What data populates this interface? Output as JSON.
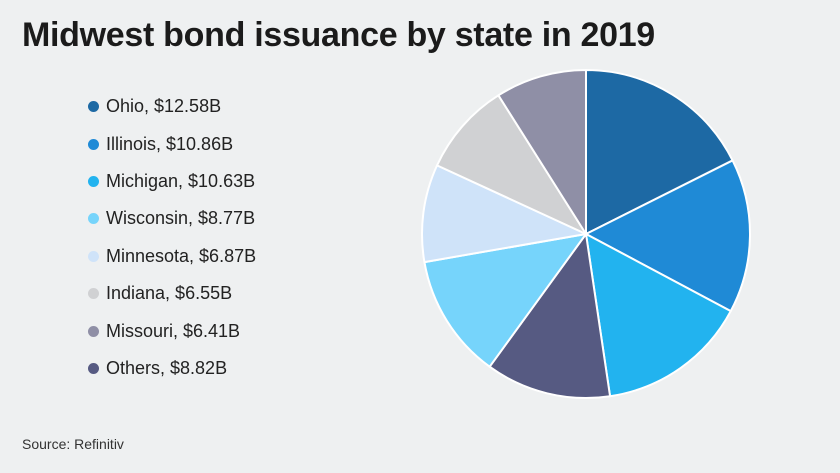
{
  "title": "Midwest bond issuance by state in 2019",
  "source": "Source: Refinitiv",
  "chart_data": {
    "type": "pie",
    "title": "Midwest bond issuance by state in 2019",
    "legend_position": "left",
    "series": [
      {
        "name": "Ohio",
        "label": "Ohio, $12.58B",
        "value": 12.58,
        "color": "#1d69a4"
      },
      {
        "name": "Illinois",
        "label": "Illinois, $10.86B",
        "value": 10.86,
        "color": "#1f8ad6"
      },
      {
        "name": "Michigan",
        "label": "Michigan, $10.63B",
        "value": 10.63,
        "color": "#22b3ef"
      },
      {
        "name": "Others",
        "label": "Others, $8.82B",
        "value": 8.82,
        "color": "#565a82"
      },
      {
        "name": "Wisconsin",
        "label": "Wisconsin, $8.77B",
        "value": 8.77,
        "color": "#76d4fb"
      },
      {
        "name": "Minnesota",
        "label": "Minnesota, $6.87B",
        "value": 6.87,
        "color": "#cfe3f9"
      },
      {
        "name": "Indiana",
        "label": "Indiana, $6.55B",
        "value": 6.55,
        "color": "#d0d1d3"
      },
      {
        "name": "Missouri",
        "label": "Missouri, $6.41B",
        "value": 6.41,
        "color": "#8f8fa6"
      }
    ],
    "legend_order": [
      "Ohio",
      "Illinois",
      "Michigan",
      "Wisconsin",
      "Minnesota",
      "Indiana",
      "Missouri",
      "Others"
    ]
  }
}
